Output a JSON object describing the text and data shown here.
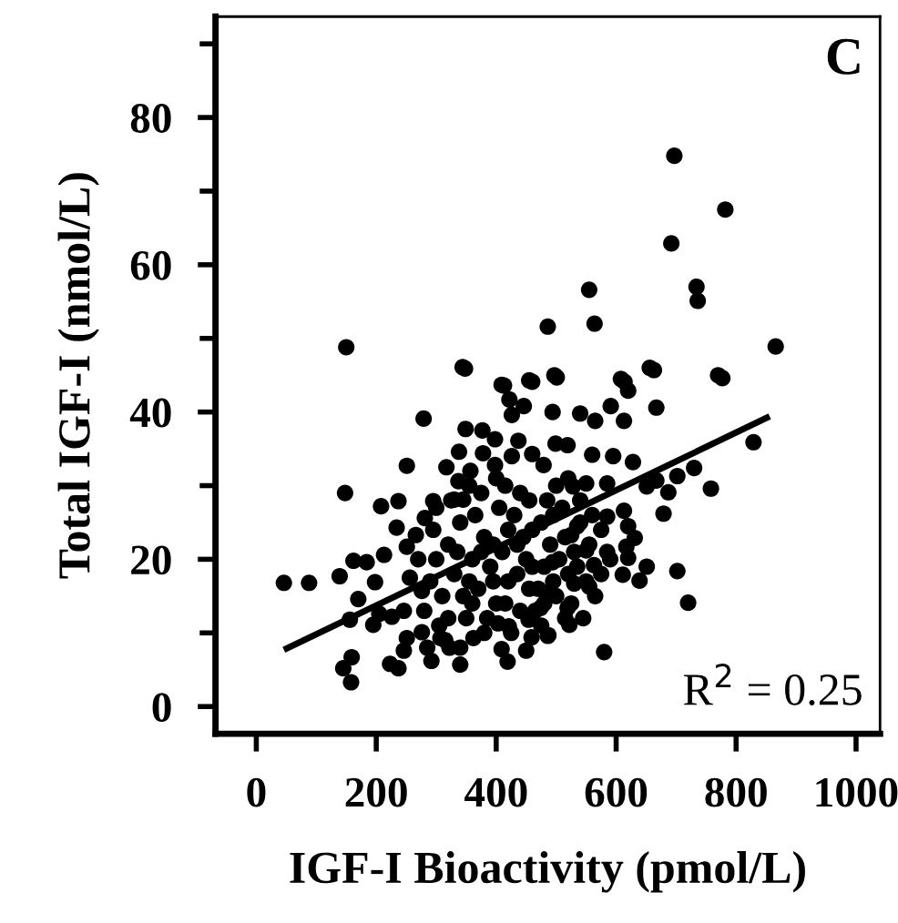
{
  "chart_data": {
    "type": "scatter",
    "xlabel": "IGF-I Bioactivity (pmol/L)",
    "ylabel": "Total IGF-I (nmol/L)",
    "annotations": [
      "C",
      "R$^{2}$ = 0.25"
    ],
    "xlim": [
      -68,
      1040
    ],
    "ylim": [
      -3.7,
      93.7
    ],
    "xticks": [
      0,
      200,
      400,
      600,
      800,
      1000
    ],
    "yticks": [
      0,
      {
        "value": 10,
        "label": null
      },
      20,
      {
        "value": 30,
        "label": null
      },
      40,
      {
        "value": 50,
        "label": null
      },
      60,
      {
        "value": 70,
        "label": null
      },
      80,
      {
        "value": 90,
        "label": null
      }
    ],
    "grid": false,
    "legend": false,
    "marker": "circle",
    "series": [
      {
        "color": "#000000",
        "x": [
          697,
          782,
          692,
          734,
          736,
          555,
          564,
          486,
          150,
          866,
          348,
          663,
          501,
          460,
          777,
          614,
          413,
          279,
          251,
          148,
          208,
          237,
          234,
          295,
          46,
          88,
          139,
          159,
          145,
          158,
          223,
          237,
          292,
          340,
          419,
          409,
          450,
          486,
          459,
          156,
          195,
          170,
          198,
          213,
          162,
          184,
          344,
          409,
          455,
          422,
          426,
          446,
          349,
          377,
          398,
          338,
          437,
          460,
          378,
          317,
          337,
          357,
          398,
          426,
          479,
          330,
          345,
          281,
          251,
          266,
          256,
          276,
          246,
          251,
          246,
          276,
          307,
          322,
          362,
          403,
          421,
          454,
          474,
          226,
          205,
          497,
          656,
          770,
          608,
          620,
          667,
          494,
          540,
          565,
          591,
          613,
          829,
          730,
          758,
          702,
          687,
          679,
          651,
          667,
          628,
          595,
          560,
          499,
          519,
          585,
          550,
          528,
          613,
          585,
          620,
          631,
          617,
          620,
          590,
          651,
          611,
          639,
          702,
          720,
          580,
          555,
          563,
          550,
          525,
          535,
          530,
          519,
          522,
          487,
          494,
          484,
          300,
          310,
          320,
          330,
          340,
          350,
          360,
          370,
          380,
          390,
          400,
          410,
          420,
          430,
          440,
          450,
          460,
          470,
          480,
          490,
          500,
          510,
          520,
          530,
          540,
          550,
          290,
          305,
          325,
          345,
          365,
          385,
          405,
          425,
          445,
          465,
          485,
          505,
          525,
          545,
          355,
          375,
          395,
          415,
          435,
          455,
          475,
          495,
          515,
          535,
          280,
          295,
          315,
          335,
          355,
          375,
          395,
          415,
          435,
          455,
          475,
          495,
          515,
          555,
          565,
          575,
          585,
          270,
          285,
          300,
          320,
          340,
          360,
          380,
          400,
          420,
          440,
          460,
          480,
          500,
          520,
          540,
          560,
          575
        ],
        "values": [
          74.8,
          67.5,
          62.9,
          57.0,
          55.1,
          56.6,
          52.0,
          51.6,
          48.8,
          48.9,
          45.9,
          45.7,
          44.7,
          44.1,
          44.6,
          44.1,
          43.6,
          39.1,
          32.7,
          29.0,
          27.2,
          27.9,
          24.3,
          27.9,
          16.8,
          16.8,
          17.7,
          6.7,
          5.2,
          3.3,
          5.8,
          5.2,
          6.2,
          5.7,
          6.1,
          7.8,
          7.6,
          9.6,
          9.4,
          11.8,
          11.1,
          14.6,
          16.9,
          20.6,
          19.8,
          19.6,
          46.1,
          43.7,
          44.3,
          41.7,
          39.6,
          40.8,
          37.7,
          37.5,
          36.3,
          34.6,
          36.1,
          34.3,
          34.4,
          32.5,
          30.6,
          32.0,
          32.8,
          34.0,
          32.8,
          28.1,
          28.1,
          25.6,
          21.7,
          23.3,
          17.5,
          15.7,
          13.0,
          9.3,
          7.6,
          10.1,
          9.3,
          8.0,
          9.3,
          11.3,
          10.9,
          11.8,
          13.4,
          12.2,
          12.6,
          45.0,
          46.0,
          45.0,
          44.5,
          42.9,
          40.6,
          40.0,
          39.8,
          38.8,
          40.8,
          38.8,
          35.9,
          32.4,
          29.6,
          31.3,
          29.1,
          26.2,
          29.9,
          30.7,
          33.2,
          34.0,
          34.2,
          35.7,
          35.5,
          30.3,
          30.3,
          29.9,
          26.6,
          25.8,
          24.5,
          22.9,
          21.7,
          20.2,
          20.0,
          19.0,
          17.9,
          17.1,
          18.4,
          14.1,
          7.4,
          16.3,
          19.2,
          21.2,
          23.3,
          24.5,
          16.7,
          13.4,
          11.1,
          9.7,
          19.6,
          15.5,
          20,
          15,
          22,
          18,
          25,
          12,
          20,
          16,
          23,
          19,
          14,
          21,
          17,
          26,
          13,
          20,
          24,
          16,
          19,
          22,
          15,
          27,
          18,
          21,
          25,
          17,
          17,
          11,
          28,
          15,
          26,
          12,
          27,
          10,
          23,
          13,
          28,
          20,
          14,
          12,
          30,
          29,
          22,
          30,
          18,
          16,
          25,
          17,
          23,
          19,
          13,
          24,
          9,
          21,
          17,
          21,
          17,
          14,
          22,
          28,
          11,
          26,
          12,
          22,
          15,
          18,
          21,
          20,
          8,
          27,
          12,
          8,
          14,
          10,
          31,
          24,
          29,
          19,
          14,
          30,
          31,
          28,
          26,
          24
        ]
      },
      {
        "type": "line",
        "color": "#000000",
        "x": [
          46,
          856
        ],
        "values": [
          7.7,
          39.4
        ],
        "marker": "none",
        "line_style": "solid"
      }
    ]
  }
}
